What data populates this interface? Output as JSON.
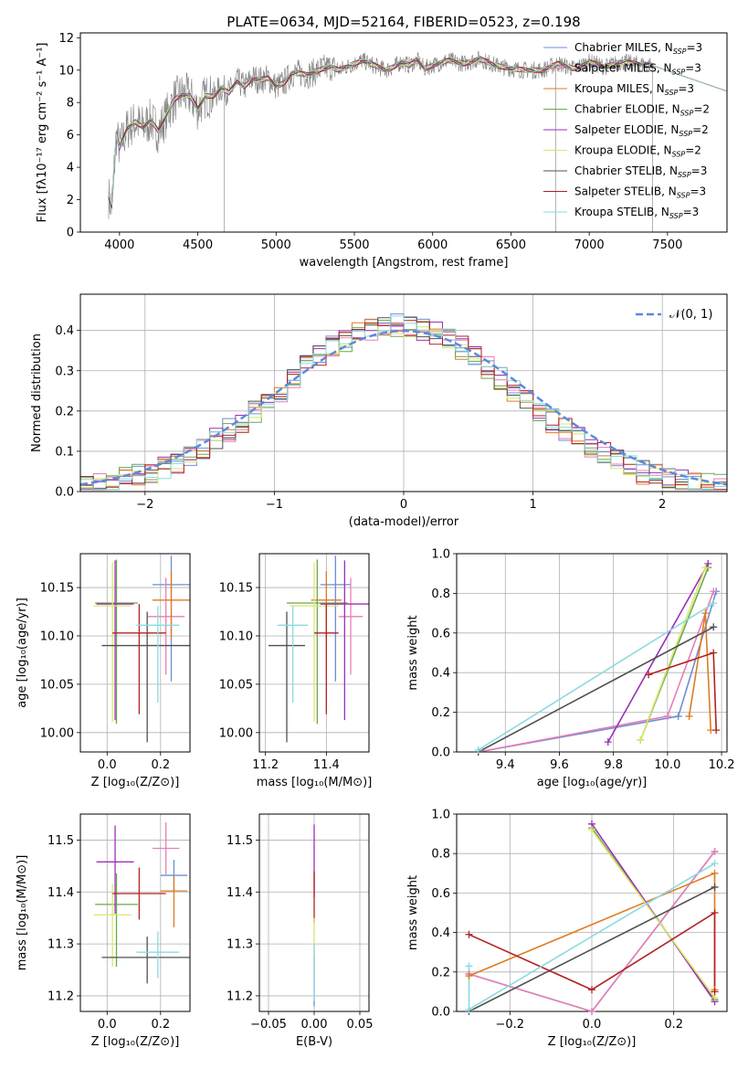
{
  "chart_data": [
    {
      "id": "spectrum",
      "type": "line",
      "title": "PLATE=0634, MJD=52164, FIBERID=0523, z=0.198",
      "xlabel": "wavelength [Angstrom, rest frame]",
      "ylabel": "Flux [fλ10⁻¹⁷ erg cm⁻² s⁻¹ A⁻¹]",
      "xlim": [
        3750,
        7880
      ],
      "ylim": [
        0,
        12.3
      ],
      "xticks": [
        4000,
        4500,
        5000,
        5500,
        6000,
        6500,
        7000,
        7500
      ],
      "yticks": [
        0,
        2,
        4,
        6,
        8,
        10,
        12
      ],
      "grid": false,
      "legend_position": "upper right",
      "data_series": {
        "name": "data",
        "color": "#808080",
        "x": [
          3930,
          3950,
          3980,
          4000,
          4050,
          4100,
          4150,
          4200,
          4250,
          4300,
          4350,
          4400,
          4450,
          4500,
          4550,
          4600,
          4650,
          4700,
          4750,
          4800,
          4850,
          4900,
          4950,
          5000,
          5050,
          5100,
          5150,
          5200,
          5250,
          5300,
          5350,
          5400,
          5450,
          5500,
          5550,
          5600,
          5650,
          5700,
          5750,
          5800,
          5850,
          5900,
          5950,
          6000,
          6100,
          6200,
          6300,
          6400,
          6500,
          6600,
          6700,
          6800,
          6900,
          7000,
          7100,
          7200,
          7300,
          7400
        ],
        "y": [
          2.2,
          1.5,
          6.0,
          5.2,
          6.4,
          6.8,
          6.5,
          6.9,
          6.2,
          7.2,
          8.2,
          8.5,
          8.4,
          7.6,
          8.4,
          8.4,
          8.9,
          8.6,
          9.3,
          9.0,
          9.5,
          9.4,
          9.5,
          9.0,
          9.2,
          9.8,
          9.8,
          9.7,
          9.9,
          10.1,
          10.2,
          10.0,
          10.2,
          10.4,
          10.6,
          10.4,
          10.2,
          10.0,
          10.2,
          10.5,
          10.3,
          10.6,
          10.1,
          10.3,
          10.6,
          10.4,
          10.7,
          10.3,
          10.1,
          10.0,
          10.0,
          10.4,
          10.1,
          10.5,
          10.2,
          10.5,
          10.4,
          10.3
        ]
      },
      "legend": [
        {
          "label": "Chabrier MILES, N",
          "sub": "SSP",
          "tail": "=3",
          "color": "#6b8fd6"
        },
        {
          "label": "Salpeter MILES, N",
          "sub": "SSP",
          "tail": "=3",
          "color": "#e87fb5"
        },
        {
          "label": "Kroupa MILES, N",
          "sub": "SSP",
          "tail": "=3",
          "color": "#e07b20"
        },
        {
          "label": "Chabrier ELODIE, N",
          "sub": "SSP",
          "tail": "=2",
          "color": "#6aa84f"
        },
        {
          "label": "Salpeter ELODIE, N",
          "sub": "SSP",
          "tail": "=2",
          "color": "#9b30b5"
        },
        {
          "label": "Kroupa ELODIE, N",
          "sub": "SSP",
          "tail": "=2",
          "color": "#d8e86a"
        },
        {
          "label": "Chabrier STELIB, N",
          "sub": "SSP",
          "tail": "=3",
          "color": "#505050"
        },
        {
          "label": "Salpeter STELIB, N",
          "sub": "SSP",
          "tail": "=3",
          "color": "#b22222"
        },
        {
          "label": "Kroupa STELIB, N",
          "sub": "SSP",
          "tail": "=3",
          "color": "#8adbe0"
        }
      ]
    },
    {
      "id": "residuals",
      "type": "line",
      "title": "",
      "xlabel": "(data-model)/error",
      "ylabel": "Normed distribution",
      "xlim": [
        -2.5,
        2.5
      ],
      "ylim": [
        0,
        0.49
      ],
      "xticks": [
        -2,
        -1,
        0,
        1,
        2
      ],
      "yticks": [
        0.0,
        0.1,
        0.2,
        0.3,
        0.4
      ],
      "grid": true,
      "legend_position": "upper right",
      "gaussian": {
        "name": "𝒩(0, 1)",
        "color": "#5b8bd9",
        "mu": 0,
        "sigma": 1
      },
      "histogram_bins": {
        "start": -2.5,
        "width": 0.1
      },
      "histogram_approx": [
        0.017,
        0.02,
        0.025,
        0.03,
        0.038,
        0.048,
        0.06,
        0.075,
        0.092,
        0.11,
        0.13,
        0.153,
        0.176,
        0.2,
        0.226,
        0.252,
        0.28,
        0.31,
        0.334,
        0.357,
        0.376,
        0.392,
        0.405,
        0.412,
        0.415,
        0.412,
        0.405,
        0.392,
        0.376,
        0.357,
        0.334,
        0.31,
        0.28,
        0.252,
        0.226,
        0.2,
        0.176,
        0.153,
        0.13,
        0.11,
        0.092,
        0.075,
        0.06,
        0.048,
        0.038,
        0.03,
        0.025,
        0.02,
        0.017,
        0.014
      ]
    },
    {
      "id": "age-vs-Z",
      "type": "scatter",
      "xlabel": "Z [log₁₀(Z/Z⊙)]",
      "ylabel": "age  [log₁₀(age/yr)]",
      "xlim": [
        -0.1,
        0.31
      ],
      "ylim": [
        9.98,
        10.185
      ],
      "xticks": [
        0.0,
        0.2
      ],
      "yticks": [
        10.0,
        10.05,
        10.1,
        10.15
      ],
      "grid": true,
      "points": [
        {
          "color": "#6b8fd6",
          "x": 0.24,
          "y": 10.153,
          "xerr": 0.07,
          "yerr_lo": 0.1,
          "yerr_hi": 0.03
        },
        {
          "color": "#e87fb5",
          "x": 0.22,
          "y": 10.12,
          "xerr": 0.07,
          "yerr_lo": 0.06,
          "yerr_hi": 0.04
        },
        {
          "color": "#e07b20",
          "x": 0.24,
          "y": 10.137,
          "xerr": 0.07,
          "yerr_lo": 0.04,
          "yerr_hi": 0.03
        },
        {
          "color": "#6aa84f",
          "x": 0.035,
          "y": 10.134,
          "xerr": 0.08,
          "yerr_lo": 0.125,
          "yerr_hi": 0.045
        },
        {
          "color": "#9b30b5",
          "x": 0.03,
          "y": 10.133,
          "xerr": 0.07,
          "yerr_lo": 0.12,
          "yerr_hi": 0.045
        },
        {
          "color": "#d8e86a",
          "x": 0.02,
          "y": 10.131,
          "xerr": 0.07,
          "yerr_lo": 0.12,
          "yerr_hi": 0.045
        },
        {
          "color": "#505050",
          "x": 0.15,
          "y": 10.09,
          "xerr": 0.17,
          "yerr_lo": 0.1,
          "yerr_hi": 0.035
        },
        {
          "color": "#b22222",
          "x": 0.12,
          "y": 10.103,
          "xerr": 0.1,
          "yerr_lo": 0.084,
          "yerr_hi": 0.03
        },
        {
          "color": "#8adbe0",
          "x": 0.19,
          "y": 10.111,
          "xerr": 0.08,
          "yerr_lo": 0.08,
          "yerr_hi": 0.02
        }
      ]
    },
    {
      "id": "age-vs-mass",
      "type": "scatter",
      "xlabel": "mass [log₁₀(M/M⊙)]",
      "ylabel": "",
      "xlim": [
        11.18,
        11.54
      ],
      "ylim": [
        9.98,
        10.185
      ],
      "xticks": [
        11.2,
        11.4
      ],
      "yticks": [
        10.0,
        10.05,
        10.1,
        10.15
      ],
      "grid": true,
      "points": [
        {
          "color": "#6b8fd6",
          "x": 11.43,
          "y": 10.153,
          "xerr": 0.05,
          "yerr_lo": 0.1,
          "yerr_hi": 0.03
        },
        {
          "color": "#e87fb5",
          "x": 11.48,
          "y": 10.12,
          "xerr": 0.04,
          "yerr_lo": 0.06,
          "yerr_hi": 0.04
        },
        {
          "color": "#e07b20",
          "x": 11.4,
          "y": 10.137,
          "xerr": 0.05,
          "yerr_lo": 0.04,
          "yerr_hi": 0.03
        },
        {
          "color": "#6aa84f",
          "x": 11.37,
          "y": 10.134,
          "xerr": 0.1,
          "yerr_lo": 0.125,
          "yerr_hi": 0.045
        },
        {
          "color": "#9b30b5",
          "x": 11.46,
          "y": 10.133,
          "xerr": 0.08,
          "yerr_lo": 0.12,
          "yerr_hi": 0.045
        },
        {
          "color": "#d8e86a",
          "x": 11.36,
          "y": 10.131,
          "xerr": 0.08,
          "yerr_lo": 0.12,
          "yerr_hi": 0.045
        },
        {
          "color": "#505050",
          "x": 11.27,
          "y": 10.09,
          "xerr": 0.06,
          "yerr_lo": 0.1,
          "yerr_hi": 0.035
        },
        {
          "color": "#b22222",
          "x": 11.4,
          "y": 10.103,
          "xerr": 0.04,
          "yerr_lo": 0.084,
          "yerr_hi": 0.03
        },
        {
          "color": "#8adbe0",
          "x": 11.29,
          "y": 10.111,
          "xerr": 0.05,
          "yerr_lo": 0.08,
          "yerr_hi": 0.02
        }
      ]
    },
    {
      "id": "weight-vs-age",
      "type": "line",
      "xlabel": "age  [log₁₀(age/yr)]",
      "ylabel": "mass weight",
      "xlim": [
        9.22,
        10.22
      ],
      "ylim": [
        0,
        1.0
      ],
      "xticks": [
        9.4,
        9.6,
        9.8,
        10.0,
        10.2
      ],
      "yticks": [
        0.0,
        0.2,
        0.4,
        0.6,
        0.8,
        1.0
      ],
      "grid": true,
      "series": [
        {
          "color": "#6b8fd6",
          "x": [
            9.3,
            10.04,
            10.18
          ],
          "y": [
            0.0,
            0.18,
            0.81
          ]
        },
        {
          "color": "#e87fb5",
          "x": [
            9.3,
            10.0,
            10.17
          ],
          "y": [
            0.0,
            0.18,
            0.81
          ]
        },
        {
          "color": "#e07b20",
          "x": [
            10.08,
            10.14,
            10.16
          ],
          "y": [
            0.18,
            0.7,
            0.11
          ]
        },
        {
          "color": "#6aa84f",
          "x": [
            9.9,
            10.15
          ],
          "y": [
            0.06,
            0.93
          ]
        },
        {
          "color": "#9b30b5",
          "x": [
            9.78,
            10.15
          ],
          "y": [
            0.05,
            0.95
          ]
        },
        {
          "color": "#d8e86a",
          "x": [
            9.9,
            10.14
          ],
          "y": [
            0.06,
            0.93
          ]
        },
        {
          "color": "#505050",
          "x": [
            9.3,
            10.17
          ],
          "y": [
            0.0,
            0.63
          ]
        },
        {
          "color": "#b22222",
          "x": [
            9.93,
            10.17,
            10.18
          ],
          "y": [
            0.39,
            0.5,
            0.11
          ]
        },
        {
          "color": "#8adbe0",
          "x": [
            9.3,
            10.17
          ],
          "y": [
            0.01,
            0.75
          ]
        }
      ]
    },
    {
      "id": "mass-vs-Z",
      "type": "scatter",
      "xlabel": "Z [log₁₀(Z/Z⊙)]",
      "ylabel": "mass [log₁₀(M/M⊙)]",
      "xlim": [
        -0.1,
        0.31
      ],
      "ylim": [
        11.17,
        11.55
      ],
      "xticks": [
        0.0,
        0.2
      ],
      "yticks": [
        11.2,
        11.3,
        11.4,
        11.5
      ],
      "grid": true,
      "points": [
        {
          "color": "#6b8fd6",
          "x": 0.25,
          "y": 11.432,
          "xerr": 0.05,
          "yerr_lo": 0.03,
          "yerr_hi": 0.03
        },
        {
          "color": "#e87fb5",
          "x": 0.22,
          "y": 11.484,
          "xerr": 0.05,
          "yerr_lo": 0.05,
          "yerr_hi": 0.05
        },
        {
          "color": "#e07b20",
          "x": 0.25,
          "y": 11.402,
          "xerr": 0.05,
          "yerr_lo": 0.07,
          "yerr_hi": 0.03
        },
        {
          "color": "#6aa84f",
          "x": 0.035,
          "y": 11.376,
          "xerr": 0.08,
          "yerr_lo": 0.12,
          "yerr_hi": 0.06
        },
        {
          "color": "#9b30b5",
          "x": 0.03,
          "y": 11.458,
          "xerr": 0.07,
          "yerr_lo": 0.1,
          "yerr_hi": 0.07
        },
        {
          "color": "#d8e86a",
          "x": 0.02,
          "y": 11.356,
          "xerr": 0.07,
          "yerr_lo": 0.1,
          "yerr_hi": 0.06
        },
        {
          "color": "#505050",
          "x": 0.15,
          "y": 11.274,
          "xerr": 0.17,
          "yerr_lo": 0.05,
          "yerr_hi": 0.04
        },
        {
          "color": "#b22222",
          "x": 0.12,
          "y": 11.397,
          "xerr": 0.1,
          "yerr_lo": 0.05,
          "yerr_hi": 0.05
        },
        {
          "color": "#8adbe0",
          "x": 0.19,
          "y": 11.284,
          "xerr": 0.08,
          "yerr_lo": 0.05,
          "yerr_hi": 0.04
        }
      ]
    },
    {
      "id": "mass-vs-EBV",
      "type": "scatter",
      "xlabel": "E(B-V)",
      "ylabel": "",
      "xlim": [
        -0.06,
        0.06
      ],
      "ylim": [
        11.17,
        11.55
      ],
      "xticks": [
        -0.05,
        0.0,
        0.05
      ],
      "yticks": [
        11.2,
        11.3,
        11.4,
        11.5
      ],
      "grid": true,
      "points": [
        {
          "color": "#6b8fd6",
          "x": 0.0,
          "y": 11.23,
          "xerr": 0,
          "yerr_lo": 0.05,
          "yerr_hi": 0.05
        },
        {
          "color": "#9b30b5",
          "x": 0.0,
          "y": 11.46,
          "xerr": 0,
          "yerr_lo": 0.07,
          "yerr_hi": 0.07
        },
        {
          "color": "#b22222",
          "x": 0.0,
          "y": 11.39,
          "xerr": 0,
          "yerr_lo": 0.05,
          "yerr_hi": 0.05
        },
        {
          "color": "#d8e86a",
          "x": 0.0,
          "y": 11.3,
          "xerr": 0,
          "yerr_lo": 0.05,
          "yerr_hi": 0.05
        },
        {
          "color": "#8adbe0",
          "x": 0.0,
          "y": 11.27,
          "xerr": 0,
          "yerr_lo": 0.08,
          "yerr_hi": 0.03
        }
      ]
    },
    {
      "id": "weight-vs-Z",
      "type": "line",
      "xlabel": "Z [log₁₀(Z/Z⊙)]",
      "ylabel": "mass weight",
      "xlim": [
        -0.33,
        0.33
      ],
      "ylim": [
        0,
        1.0
      ],
      "xticks": [
        -0.2,
        0.0,
        0.2
      ],
      "yticks": [
        0.0,
        0.2,
        0.4,
        0.6,
        0.8,
        1.0
      ],
      "grid": true,
      "series": [
        {
          "color": "#6b8fd6",
          "x": [
            -0.3,
            0.0,
            0.3
          ],
          "y": [
            0.19,
            0.0,
            0.81
          ]
        },
        {
          "color": "#e87fb5",
          "x": [
            -0.3,
            0.0,
            0.3
          ],
          "y": [
            0.19,
            0.0,
            0.81
          ]
        },
        {
          "color": "#e07b20",
          "x": [
            -0.3,
            0.3,
            0.3
          ],
          "y": [
            0.18,
            0.7,
            0.11
          ]
        },
        {
          "color": "#6aa84f",
          "x": [
            0.0,
            0.3
          ],
          "y": [
            0.93,
            0.06
          ]
        },
        {
          "color": "#9b30b5",
          "x": [
            0.0,
            0.3
          ],
          "y": [
            0.95,
            0.05
          ]
        },
        {
          "color": "#d8e86a",
          "x": [
            0.0,
            0.3
          ],
          "y": [
            0.92,
            0.07
          ]
        },
        {
          "color": "#505050",
          "x": [
            -0.3,
            0.3
          ],
          "y": [
            0.0,
            0.63
          ]
        },
        {
          "color": "#b22222",
          "x": [
            -0.3,
            0.0,
            0.3,
            0.3
          ],
          "y": [
            0.39,
            0.11,
            0.5,
            0.1
          ]
        },
        {
          "color": "#8adbe0",
          "x": [
            -0.3,
            -0.3,
            0.3
          ],
          "y": [
            0.23,
            0.01,
            0.75
          ]
        }
      ]
    }
  ]
}
